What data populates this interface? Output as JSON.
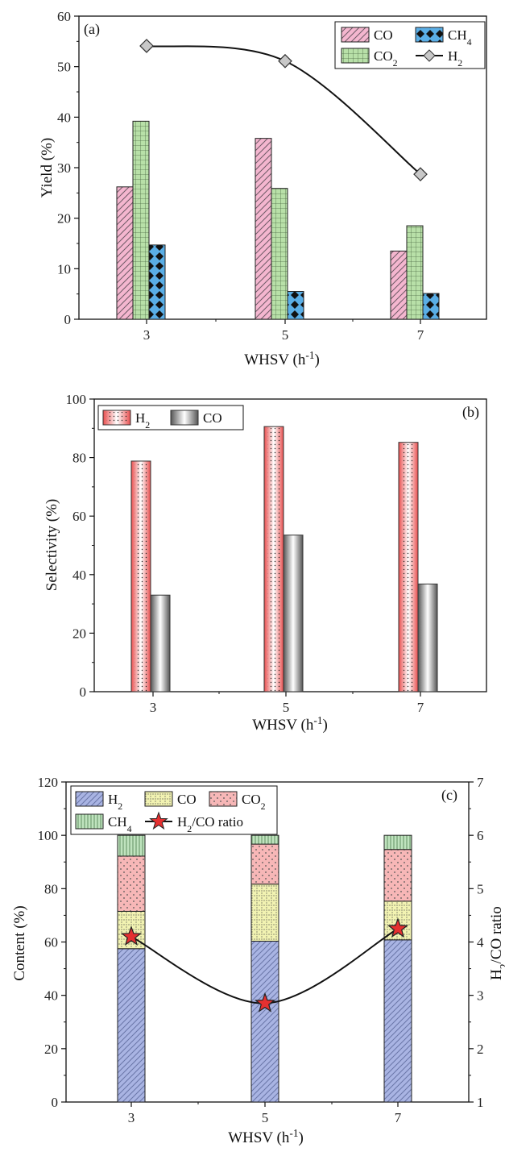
{
  "chart_data": [
    {
      "type": "bar",
      "panel_label": "(a)",
      "categories": [
        "3",
        "5",
        "7"
      ],
      "xlabel": "WHSV (h",
      "xlabel_sup": "-1",
      "xlabel_end": ")",
      "ylabel": "Yield (%)",
      "ylim": [
        0,
        60
      ],
      "yticks": [
        0,
        10,
        20,
        30,
        40,
        50,
        60
      ],
      "series": [
        {
          "name": "CO",
          "sub": "",
          "type": "bar",
          "values": [
            26.2,
            35.8,
            13.5
          ],
          "color": "#f4b6cf",
          "pattern": "diagonal-hatch"
        },
        {
          "name": "CO",
          "sub": "2",
          "type": "bar",
          "values": [
            39.2,
            25.9,
            18.5
          ],
          "color": "#b8e0a8",
          "pattern": "grid"
        },
        {
          "name": "CH",
          "sub": "4",
          "type": "bar",
          "values": [
            14.7,
            5.5,
            5.1
          ],
          "color": "#5aaee6",
          "pattern": "dots"
        },
        {
          "name": "H",
          "sub": "2",
          "type": "line",
          "values": [
            54.1,
            51.1,
            28.7
          ],
          "color": "#c8c8c8",
          "marker": "diamond"
        }
      ],
      "legend": "top-right",
      "grid": false
    },
    {
      "type": "bar",
      "panel_label": "(b)",
      "categories": [
        "3",
        "5",
        "7"
      ],
      "xlabel": "WHSV (h",
      "xlabel_sup": "-1",
      "xlabel_end": ")",
      "ylabel": "Selectivity (%)",
      "ylim": [
        0,
        100
      ],
      "yticks": [
        0,
        20,
        40,
        60,
        80,
        100
      ],
      "series": [
        {
          "name": "H",
          "sub": "2",
          "type": "bar",
          "values": [
            78.8,
            90.6,
            85.2
          ],
          "color": "#ef6a6a",
          "pattern": "dots-gradient"
        },
        {
          "name": "CO",
          "sub": "",
          "type": "bar",
          "values": [
            33.0,
            53.5,
            36.8
          ],
          "color": "#9a9a9a",
          "pattern": "gradient"
        }
      ],
      "legend": "top-left",
      "grid": false
    },
    {
      "type": "stacked-bar",
      "panel_label": "(c)",
      "categories": [
        "3",
        "5",
        "7"
      ],
      "xlabel": "WHSV (h",
      "xlabel_sup": "-1",
      "xlabel_end": ")",
      "ylabel": "Content (%)",
      "ylim": [
        0,
        120
      ],
      "yticks": [
        0,
        20,
        40,
        60,
        80,
        100,
        120
      ],
      "y2label": "H",
      "y2label_sub": "2",
      "y2label_end": "/CO ratio",
      "y2lim": [
        1,
        7
      ],
      "y2ticks": [
        1,
        2,
        3,
        4,
        5,
        6,
        7
      ],
      "series": [
        {
          "name": "H",
          "sub": "2",
          "type": "bar",
          "values": [
            57.5,
            60.3,
            60.8
          ],
          "color": "#a9b4e3",
          "pattern": "diagonal-hatch"
        },
        {
          "name": "CO",
          "sub": "",
          "type": "bar",
          "values": [
            14.0,
            21.4,
            14.5
          ],
          "color": "#f2f3b2",
          "pattern": "grid-dotted"
        },
        {
          "name": "CO",
          "sub": "2",
          "type": "bar",
          "values": [
            20.7,
            15.0,
            19.4
          ],
          "color": "#f7b7b7",
          "pattern": "dots"
        },
        {
          "name": "CH",
          "sub": "4",
          "type": "bar",
          "values": [
            7.8,
            3.3,
            5.3
          ],
          "color": "#bfe3be",
          "pattern": "vertical-lines"
        },
        {
          "name": "H",
          "sub": "2",
          "name_end": "/CO ratio",
          "type": "line",
          "axis": "right",
          "values": [
            4.1,
            2.85,
            4.25
          ],
          "color": "#e53030",
          "marker": "star"
        }
      ],
      "legend": "top-left",
      "grid": false
    }
  ]
}
